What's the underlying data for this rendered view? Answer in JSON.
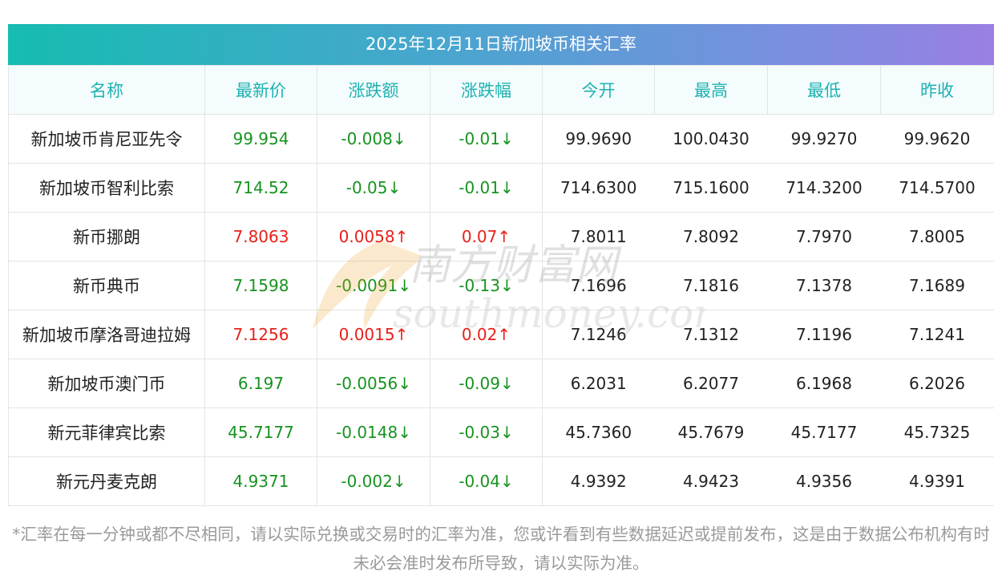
{
  "title": "2025年12月11日新加坡币相关汇率",
  "headers": [
    "名称",
    "最新价",
    "涨跌额",
    "涨跌幅",
    "今开",
    "最高",
    "最低",
    "昨收"
  ],
  "rows": [
    {
      "name": "新加坡币肯尼亚先令",
      "latest": "99.954",
      "change": "-0.008↓",
      "pct": "-0.01↓",
      "open": "99.9690",
      "high": "100.0430",
      "low": "99.9270",
      "prev": "99.9620",
      "dir": "down"
    },
    {
      "name": "新加坡币智利比索",
      "latest": "714.52",
      "change": "-0.05↓",
      "pct": "-0.01↓",
      "open": "714.6300",
      "high": "715.1600",
      "low": "714.3200",
      "prev": "714.5700",
      "dir": "down"
    },
    {
      "name": "新币挪朗",
      "latest": "7.8063",
      "change": "0.0058↑",
      "pct": "0.07↑",
      "open": "7.8011",
      "high": "7.8092",
      "low": "7.7970",
      "prev": "7.8005",
      "dir": "up"
    },
    {
      "name": "新币典币",
      "latest": "7.1598",
      "change": "-0.0091↓",
      "pct": "-0.13↓",
      "open": "7.1696",
      "high": "7.1816",
      "low": "7.1378",
      "prev": "7.1689",
      "dir": "down"
    },
    {
      "name": "新加坡币摩洛哥迪拉姆",
      "latest": "7.1256",
      "change": "0.0015↑",
      "pct": "0.02↑",
      "open": "7.1246",
      "high": "7.1312",
      "low": "7.1196",
      "prev": "7.1241",
      "dir": "up"
    },
    {
      "name": "新加坡币澳门币",
      "latest": "6.197",
      "change": "-0.0056↓",
      "pct": "-0.09↓",
      "open": "6.2031",
      "high": "6.2077",
      "low": "6.1968",
      "prev": "6.2026",
      "dir": "down"
    },
    {
      "name": "新元菲律宾比索",
      "latest": "45.7177",
      "change": "-0.0148↓",
      "pct": "-0.03↓",
      "open": "45.7360",
      "high": "45.7679",
      "low": "45.7177",
      "prev": "45.7325",
      "dir": "down"
    },
    {
      "name": "新元丹麦克朗",
      "latest": "4.9371",
      "change": "-0.002↓",
      "pct": "-0.04↓",
      "open": "4.9392",
      "high": "4.9423",
      "low": "4.9356",
      "prev": "4.9391",
      "dir": "down"
    }
  ],
  "watermark": {
    "cn": "南方财富网",
    "en": "southmoney.com"
  },
  "note": "*汇率在每一分钟或都不尽相同，请以实际兑换或交易时的汇率为准，您或许看到有些数据延迟或提前发布，这是由于数据公布机构有时未必会准时发布所导致，请以实际为准。",
  "colors": {
    "up": "#e8201a",
    "down": "#17931f",
    "header_text": "#1db2b1"
  }
}
